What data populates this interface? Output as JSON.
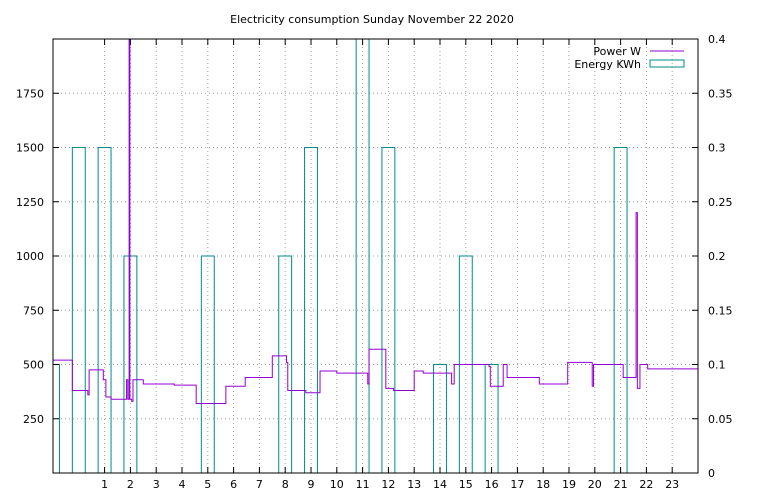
{
  "chart_data": {
    "type": "line",
    "title": "Electricity consumption Sunday November 22 2020",
    "x_axis": {
      "min": -1,
      "max": 24,
      "ticks": [
        1,
        2,
        3,
        4,
        5,
        6,
        7,
        8,
        9,
        10,
        11,
        12,
        13,
        14,
        15,
        16,
        17,
        18,
        19,
        20,
        21,
        22,
        23
      ]
    },
    "y_left": {
      "min": 0,
      "max": 2000,
      "ticks": [
        250,
        500,
        750,
        1000,
        1250,
        1500,
        1750
      ],
      "unit": "W"
    },
    "y_right": {
      "min": 0,
      "max": 0.4,
      "ticks": [
        0,
        0.05,
        0.1,
        0.15,
        0.2,
        0.25,
        0.3,
        0.35,
        0.4
      ],
      "tick_labels": [
        "0",
        "0.05",
        "0.1",
        "0.15",
        "0.2",
        "0.25",
        "0.3",
        "0.35",
        "0.4"
      ]
    },
    "grid": true,
    "legend_position": "top-right",
    "series": [
      {
        "name": "Power W",
        "color": "#9400d3",
        "axis": "left",
        "points": [
          [
            -1,
            520
          ],
          [
            -0.25,
            520
          ],
          [
            -0.25,
            380
          ],
          [
            0.35,
            380
          ],
          [
            0.35,
            360
          ],
          [
            0.4,
            360
          ],
          [
            0.4,
            475
          ],
          [
            0.95,
            475
          ],
          [
            0.95,
            430
          ],
          [
            1.05,
            430
          ],
          [
            1.05,
            350
          ],
          [
            1.25,
            350
          ],
          [
            1.25,
            340
          ],
          [
            1.85,
            340
          ],
          [
            1.85,
            430
          ],
          [
            1.9,
            430
          ],
          [
            1.9,
            340
          ],
          [
            1.95,
            340
          ],
          [
            1.95,
            2000
          ],
          [
            1.98,
            2000
          ],
          [
            1.98,
            340
          ],
          [
            2.05,
            340
          ],
          [
            2.05,
            330
          ],
          [
            2.1,
            330
          ],
          [
            2.1,
            430
          ],
          [
            2.5,
            430
          ],
          [
            2.5,
            410
          ],
          [
            3.7,
            410
          ],
          [
            3.7,
            405
          ],
          [
            4.55,
            405
          ],
          [
            4.55,
            320
          ],
          [
            5.7,
            320
          ],
          [
            5.7,
            400
          ],
          [
            6.45,
            400
          ],
          [
            6.45,
            440
          ],
          [
            7.5,
            440
          ],
          [
            7.5,
            540
          ],
          [
            8.05,
            540
          ],
          [
            8.05,
            510
          ],
          [
            8.1,
            510
          ],
          [
            8.1,
            380
          ],
          [
            8.8,
            380
          ],
          [
            8.8,
            370
          ],
          [
            9.35,
            370
          ],
          [
            9.35,
            470
          ],
          [
            10,
            470
          ],
          [
            10,
            460
          ],
          [
            11.2,
            460
          ],
          [
            11.2,
            410
          ],
          [
            11.25,
            410
          ],
          [
            11.25,
            570
          ],
          [
            11.9,
            570
          ],
          [
            11.9,
            390
          ],
          [
            12.2,
            390
          ],
          [
            12.2,
            380
          ],
          [
            13,
            380
          ],
          [
            13,
            470
          ],
          [
            13.35,
            470
          ],
          [
            13.35,
            460
          ],
          [
            14.45,
            460
          ],
          [
            14.45,
            410
          ],
          [
            14.55,
            410
          ],
          [
            14.55,
            500
          ],
          [
            15.9,
            500
          ],
          [
            15.9,
            490
          ],
          [
            15.95,
            490
          ],
          [
            15.95,
            400
          ],
          [
            16.45,
            400
          ],
          [
            16.45,
            500
          ],
          [
            16.6,
            500
          ],
          [
            16.6,
            440
          ],
          [
            17.85,
            440
          ],
          [
            17.85,
            410
          ],
          [
            18.95,
            410
          ],
          [
            18.95,
            510
          ],
          [
            19.9,
            510
          ],
          [
            19.9,
            400
          ],
          [
            19.95,
            400
          ],
          [
            19.95,
            500
          ],
          [
            21.1,
            500
          ],
          [
            21.1,
            440
          ],
          [
            21.6,
            440
          ],
          [
            21.6,
            1200
          ],
          [
            21.65,
            1200
          ],
          [
            21.65,
            390
          ],
          [
            21.75,
            390
          ],
          [
            21.75,
            500
          ],
          [
            22.05,
            500
          ],
          [
            22.05,
            480
          ],
          [
            24,
            480
          ]
        ]
      },
      {
        "name": "Energy KWh",
        "color": "#008b8b",
        "axis": "right",
        "bars": [
          [
            -1,
            -0.75,
            0.1
          ],
          [
            -0.25,
            0.25,
            0.3
          ],
          [
            0.75,
            1.25,
            0.3
          ],
          [
            1.75,
            2.25,
            0.2
          ],
          [
            4.75,
            5.25,
            0.2
          ],
          [
            7.75,
            8.25,
            0.2
          ],
          [
            8.75,
            9.25,
            0.3
          ],
          [
            10.75,
            11.25,
            0.4
          ],
          [
            11.75,
            12.25,
            0.3
          ],
          [
            13.75,
            14.25,
            0.1
          ],
          [
            14.75,
            15.25,
            0.2
          ],
          [
            15.75,
            16.25,
            0.1
          ],
          [
            20.75,
            21.25,
            0.3
          ]
        ]
      }
    ]
  }
}
